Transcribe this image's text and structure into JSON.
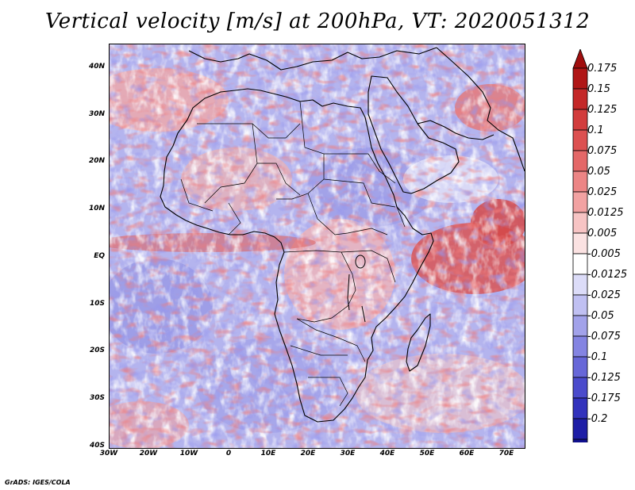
{
  "title": "Vertical velocity [m/s] at 200hPa, VT: 2020051312",
  "credit": "GrADS: IGES/COLA",
  "map": {
    "region": "Africa",
    "lat_labels": [
      "40N",
      "30N",
      "20N",
      "10N",
      "EQ",
      "10S",
      "20S",
      "30S",
      "40S"
    ],
    "lon_labels": [
      "30W",
      "20W",
      "10W",
      "0",
      "10E",
      "20E",
      "30E",
      "40E",
      "50E",
      "60E",
      "70E"
    ]
  },
  "colorbar": {
    "labels": [
      "0.175",
      "0.15",
      "0.125",
      "0.1",
      "0.075",
      "0.05",
      "0.025",
      "0.0125",
      "0.005",
      "-0.005",
      "-0.0125",
      "-0.025",
      "-0.05",
      "-0.075",
      "-0.1",
      "-0.125",
      "-0.175",
      "-0.2"
    ],
    "colors": [
      "#b01616",
      "#c42828",
      "#d23c3c",
      "#dc5050",
      "#e46868",
      "#ec8585",
      "#f2a2a2",
      "#f7c4c4",
      "#fbe2e2",
      "#ffffff",
      "#dcdcf8",
      "#c0c0f2",
      "#a2a2ea",
      "#8484e2",
      "#6767d8",
      "#4b4bcc",
      "#3232bc",
      "#1e1ea6",
      "#10108e"
    ],
    "top_arrow_color": "#a00e0e",
    "bottom_arrow_color": "#0a0a80"
  }
}
